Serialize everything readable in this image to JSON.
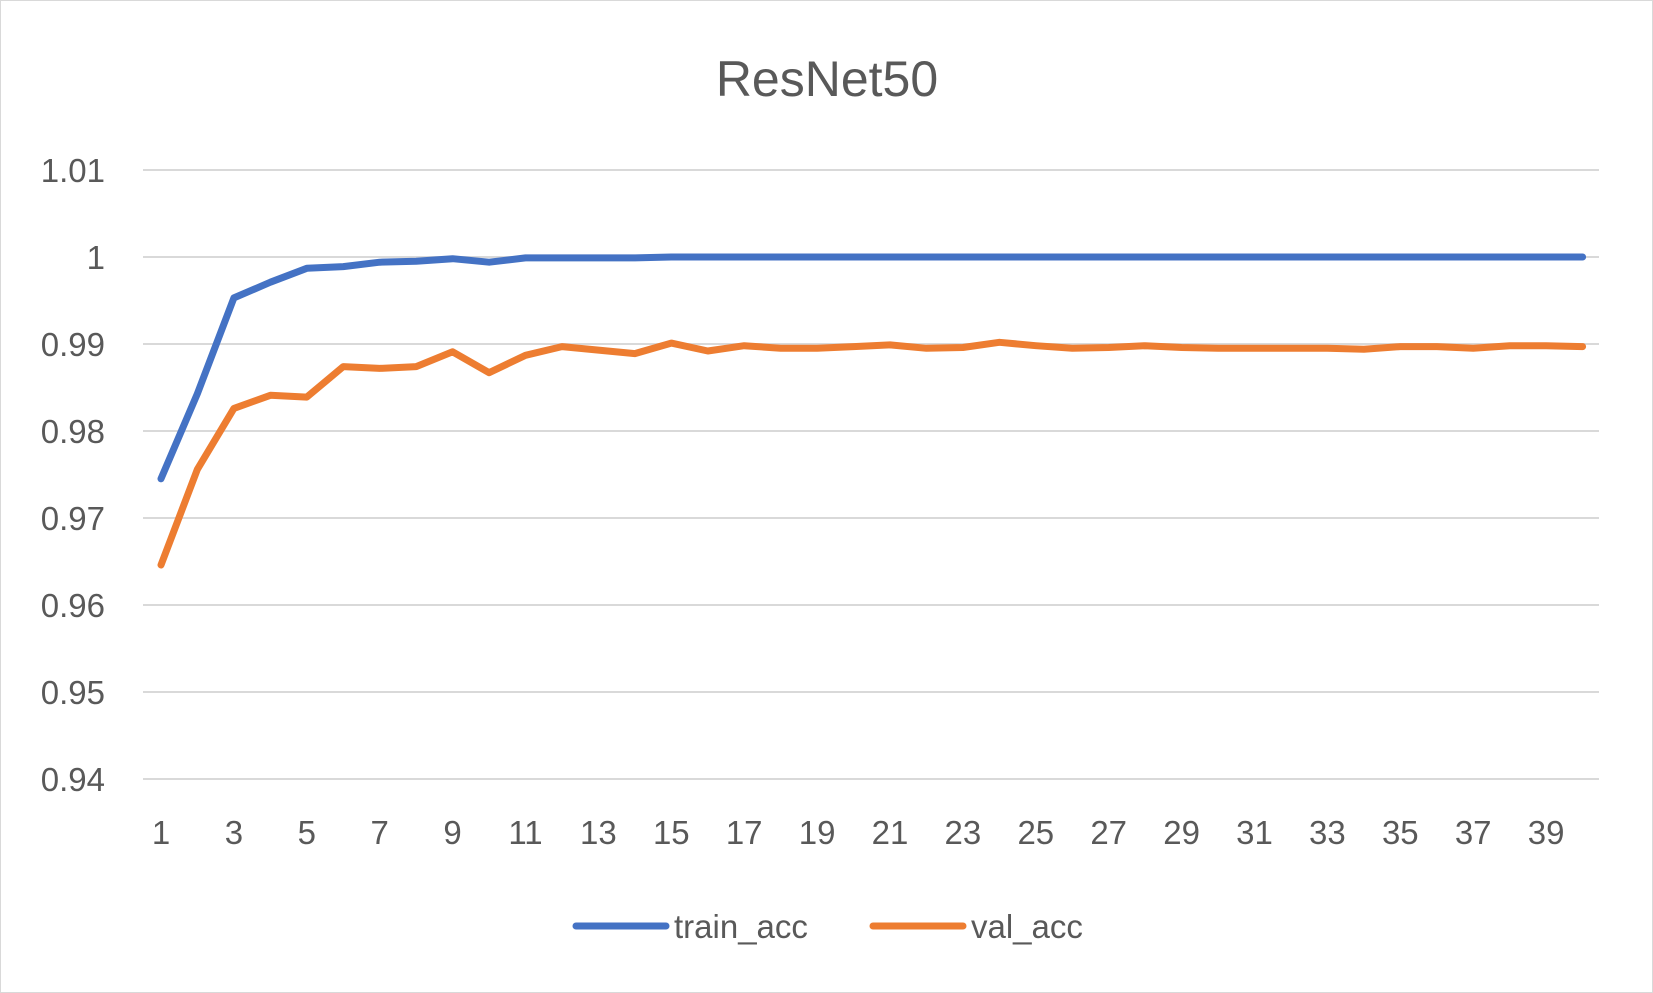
{
  "chart_data": {
    "type": "line",
    "title": "ResNet50",
    "xlabel": "",
    "ylabel": "",
    "ylim": [
      0.94,
      1.01
    ],
    "yticks": [
      "1.01",
      "1",
      "0.99",
      "0.98",
      "0.97",
      "0.96",
      "0.95",
      "0.94"
    ],
    "ytick_values": [
      1.01,
      1.0,
      0.99,
      0.98,
      0.97,
      0.96,
      0.95,
      0.94
    ],
    "xtick_labels": [
      "1",
      "3",
      "5",
      "7",
      "9",
      "11",
      "13",
      "15",
      "17",
      "19",
      "21",
      "23",
      "25",
      "27",
      "29",
      "31",
      "33",
      "35",
      "37",
      "39"
    ],
    "x": [
      1,
      2,
      3,
      4,
      5,
      6,
      7,
      8,
      9,
      10,
      11,
      12,
      13,
      14,
      15,
      16,
      17,
      18,
      19,
      20,
      21,
      22,
      23,
      24,
      25,
      26,
      27,
      28,
      29,
      30,
      31,
      32,
      33,
      34,
      35,
      36,
      37,
      38,
      39,
      40
    ],
    "grid": true,
    "legend_position": "bottom",
    "series": [
      {
        "name": "train_acc",
        "color": "#4472c4",
        "values": [
          0.9745,
          0.9843,
          0.9953,
          0.9971,
          0.9987,
          0.9989,
          0.9994,
          0.9995,
          0.9998,
          0.9994,
          0.9999,
          0.9999,
          0.9999,
          0.9999,
          1.0,
          1.0,
          1.0,
          1.0,
          1.0,
          1.0,
          1.0,
          1.0,
          1.0,
          1.0,
          1.0,
          1.0,
          1.0,
          1.0,
          1.0,
          1.0,
          1.0,
          1.0,
          1.0,
          1.0,
          1.0,
          1.0,
          1.0,
          1.0,
          1.0,
          1.0
        ]
      },
      {
        "name": "val_acc",
        "color": "#ed7d31",
        "values": [
          0.9646,
          0.9756,
          0.9826,
          0.9841,
          0.9839,
          0.9874,
          0.9872,
          0.9874,
          0.9891,
          0.9867,
          0.9887,
          0.9897,
          0.9893,
          0.9889,
          0.9901,
          0.9892,
          0.9898,
          0.9895,
          0.9895,
          0.9897,
          0.9899,
          0.9895,
          0.9896,
          0.9902,
          0.9898,
          0.9895,
          0.9896,
          0.9898,
          0.9896,
          0.9895,
          0.9895,
          0.9895,
          0.9895,
          0.9894,
          0.9897,
          0.9897,
          0.9895,
          0.9898,
          0.9898,
          0.9897
        ]
      }
    ]
  }
}
